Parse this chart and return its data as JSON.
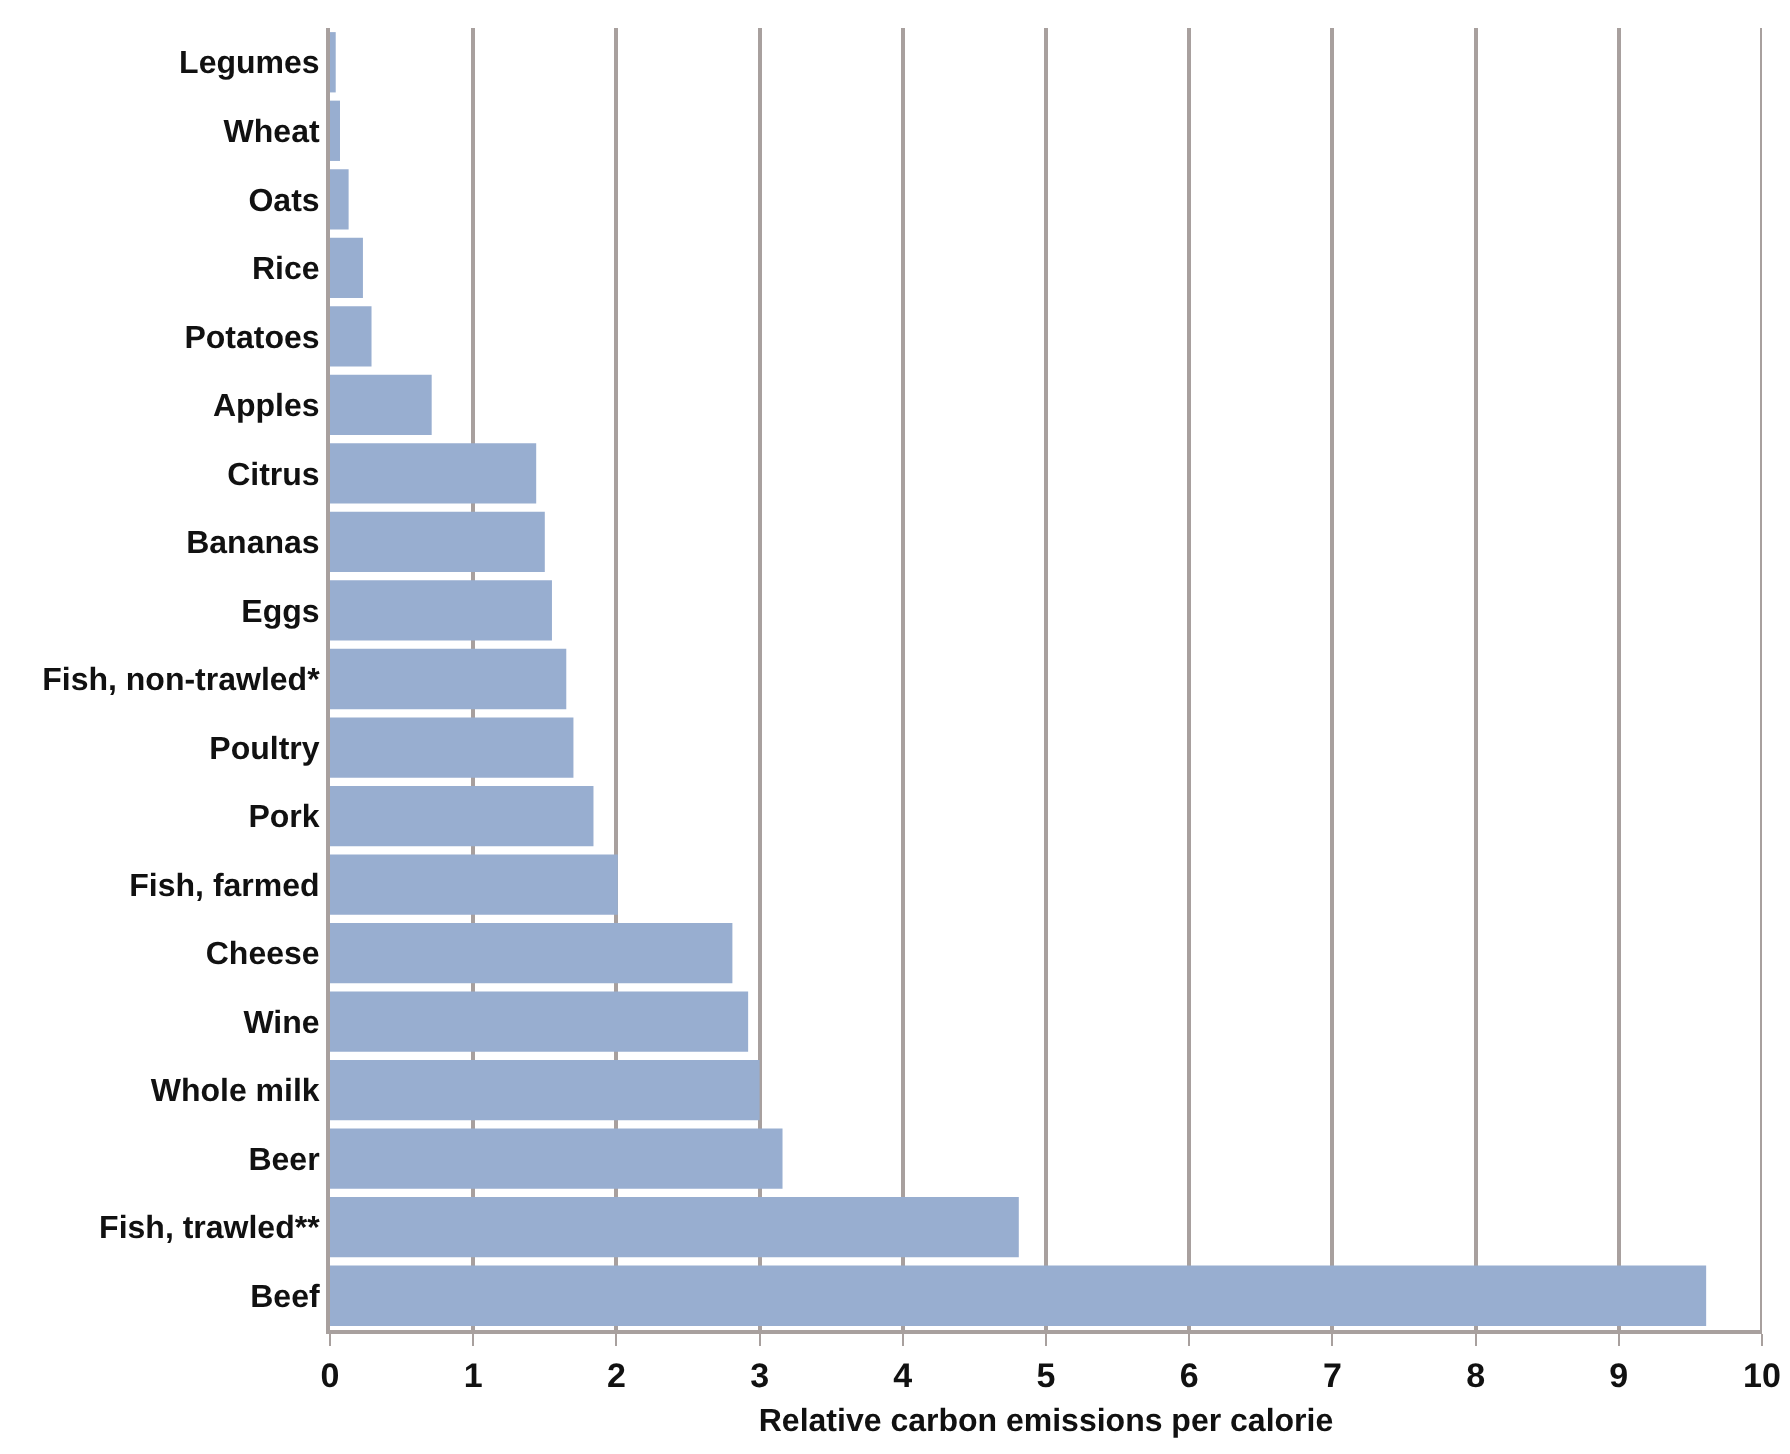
{
  "chart_data": {
    "type": "bar",
    "orientation": "horizontal",
    "xlabel": "Relative carbon emissions per calorie",
    "categories": [
      "Legumes",
      "Wheat",
      "Oats",
      "Rice",
      "Potatoes",
      "Apples",
      "Citrus",
      "Bananas",
      "Eggs",
      "Fish, non-trawled*",
      "Poultry",
      "Pork",
      "Fish, farmed",
      "Cheese",
      "Wine",
      "Whole milk",
      "Beer",
      "Fish, trawled**",
      "Beef"
    ],
    "values": [
      0.04,
      0.07,
      0.13,
      0.23,
      0.29,
      0.71,
      1.44,
      1.5,
      1.55,
      1.65,
      1.7,
      1.84,
      2.01,
      2.81,
      2.92,
      3.0,
      3.16,
      4.81,
      9.61
    ],
    "color": "#98aed0",
    "xlim": [
      0,
      10
    ],
    "xticks": [
      0,
      1,
      2,
      3,
      4,
      5,
      6,
      7,
      8,
      9,
      10
    ],
    "grid": "x"
  }
}
